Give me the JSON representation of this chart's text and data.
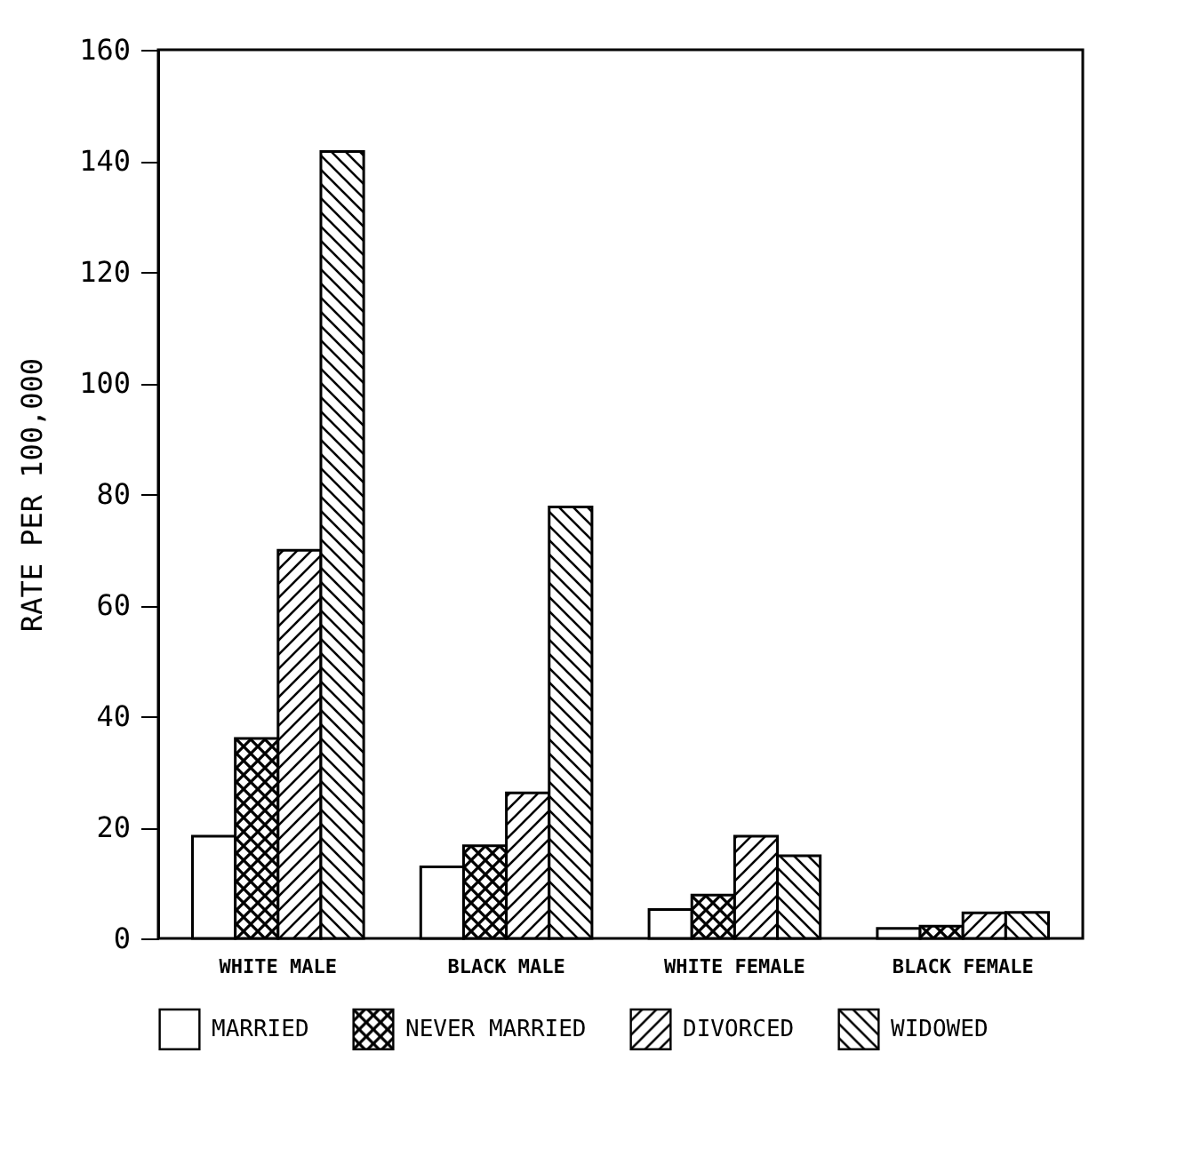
{
  "chart_data": {
    "type": "bar",
    "ylabel": "RATE PER 100,000",
    "categories": [
      "WHITE MALE",
      "BLACK MALE",
      "WHITE FEMALE",
      "BLACK FEMALE"
    ],
    "series": [
      {
        "name": "MARRIED",
        "color": "#000000",
        "values": [
          18.4,
          12.9,
          5.2,
          1.8
        ]
      },
      {
        "name": "NEVER MARRIED",
        "color": "#000000",
        "values": [
          36,
          16.7,
          7.8,
          2.2
        ]
      },
      {
        "name": "DIVORCED",
        "color": "#000000",
        "values": [
          69.9,
          26.2,
          18.4,
          4.6
        ]
      },
      {
        "name": "WIDOWED",
        "color": "#000000",
        "values": [
          141.7,
          77.7,
          14.9,
          4.7
        ]
      }
    ],
    "ylim": [
      0,
      160
    ],
    "yticks": [
      0,
      20,
      40,
      60,
      80,
      100,
      120,
      140,
      160
    ],
    "grid": false,
    "legend": "bottom"
  }
}
